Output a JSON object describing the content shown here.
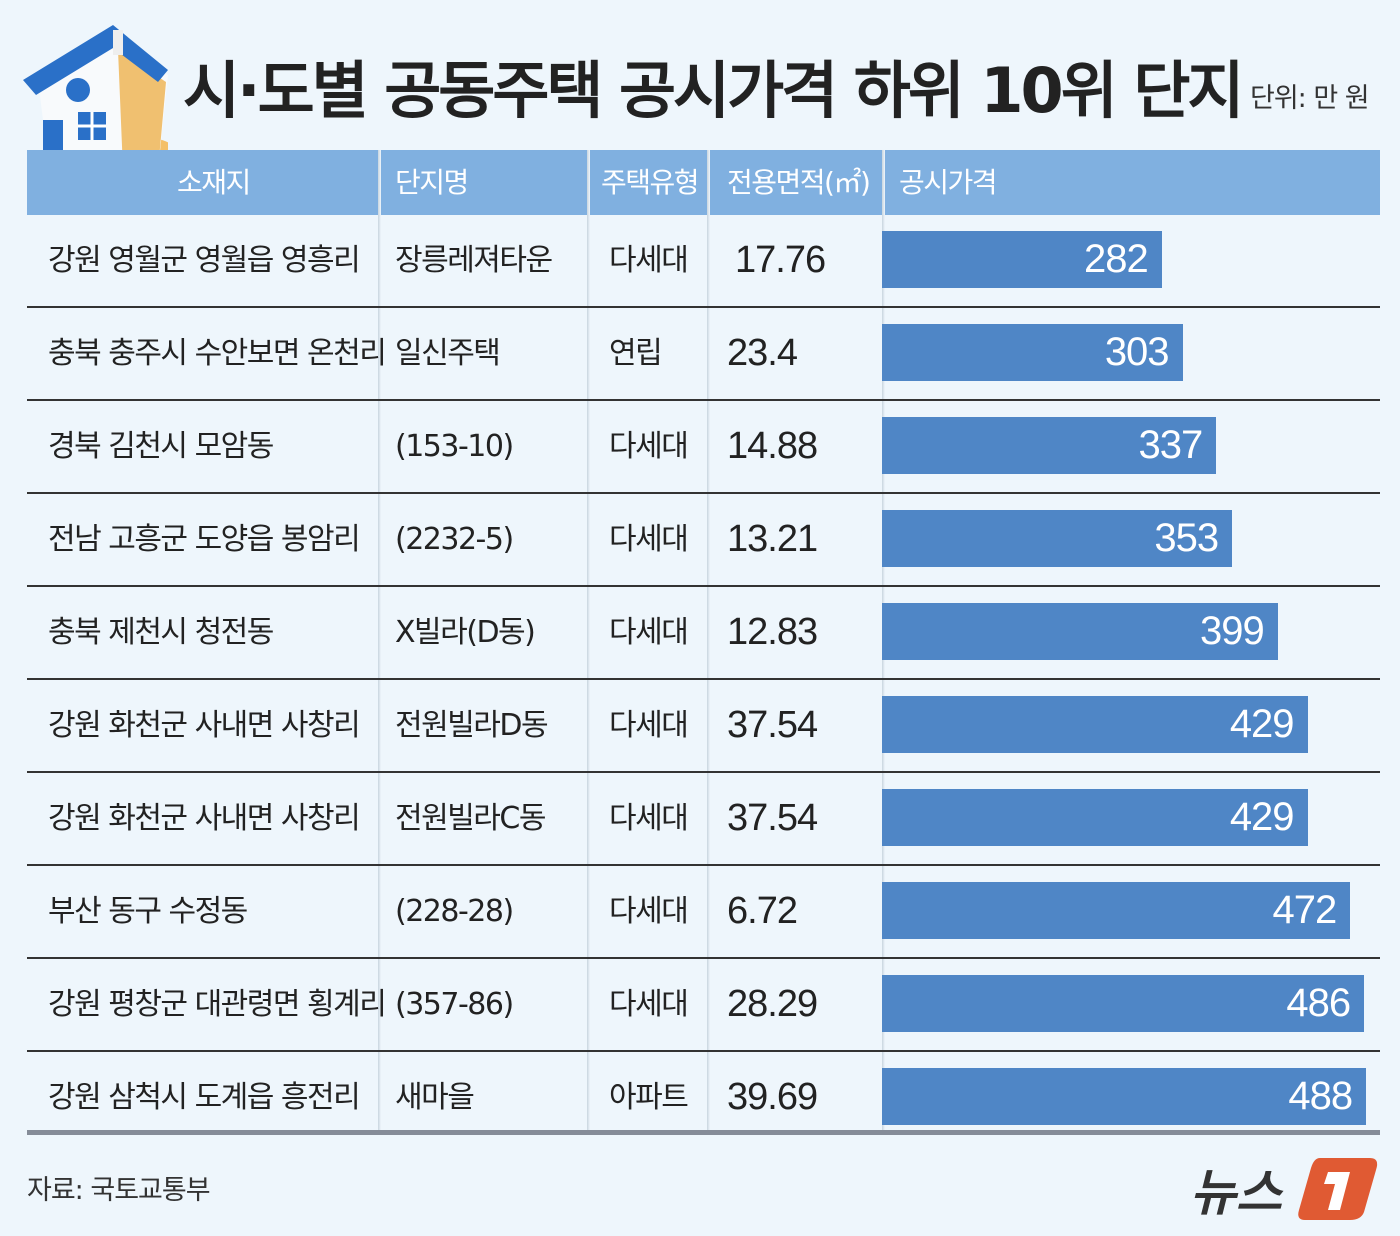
{
  "title": "시·도별 공동주택 공시가격 하위 10위 단지",
  "unit": "단위: 만 원",
  "source": "자료: 국토교통부",
  "logo_text": "뉴스1",
  "colors": {
    "header": "#80b0e0",
    "bar": "#4f86c6",
    "background": "#eef6fc",
    "logo_accent": "#e05a33"
  },
  "icons": [
    "house-on-coins-icon"
  ],
  "chart_data": {
    "type": "bar",
    "orientation": "horizontal",
    "columns": [
      "소재지",
      "단지명",
      "주택유형",
      "전용면적(㎡)",
      "공시가격"
    ],
    "rows": [
      {
        "location": "강원 영월군 영월읍 영흥리",
        "complex": "장릉레져타운",
        "type": "다세대",
        "area": "17.76",
        "price": 282
      },
      {
        "location": "충북 충주시 수안보면 온천리",
        "complex": "일신주택",
        "type": "연립",
        "area": "23.4",
        "price": 303
      },
      {
        "location": "경북 김천시 모암동",
        "complex": "(153-10)",
        "type": "다세대",
        "area": "14.88",
        "price": 337
      },
      {
        "location": "전남 고흥군 도양읍 봉암리",
        "complex": "(2232-5)",
        "type": "다세대",
        "area": "13.21",
        "price": 353
      },
      {
        "location": "충북 제천시 청전동",
        "complex": "X빌라(D동)",
        "type": "다세대",
        "area": "12.83",
        "price": 399
      },
      {
        "location": "강원 화천군 사내면 사창리",
        "complex": "전원빌라D동",
        "type": "다세대",
        "area": "37.54",
        "price": 429
      },
      {
        "location": "강원 화천군 사내면 사창리",
        "complex": "전원빌라C동",
        "type": "다세대",
        "area": "37.54",
        "price": 429
      },
      {
        "location": "부산 동구 수정동",
        "complex": "(228-28)",
        "type": "다세대",
        "area": "6.72",
        "price": 472
      },
      {
        "location": "강원 평창군 대관령면 횡계리",
        "complex": "(357-86)",
        "type": "다세대",
        "area": "28.29",
        "price": 486
      },
      {
        "location": "강원 삼척시 도계읍 흥전리",
        "complex": "새마을",
        "type": "아파트",
        "area": "39.69",
        "price": 488
      }
    ],
    "xlim": [
      0,
      500
    ]
  }
}
